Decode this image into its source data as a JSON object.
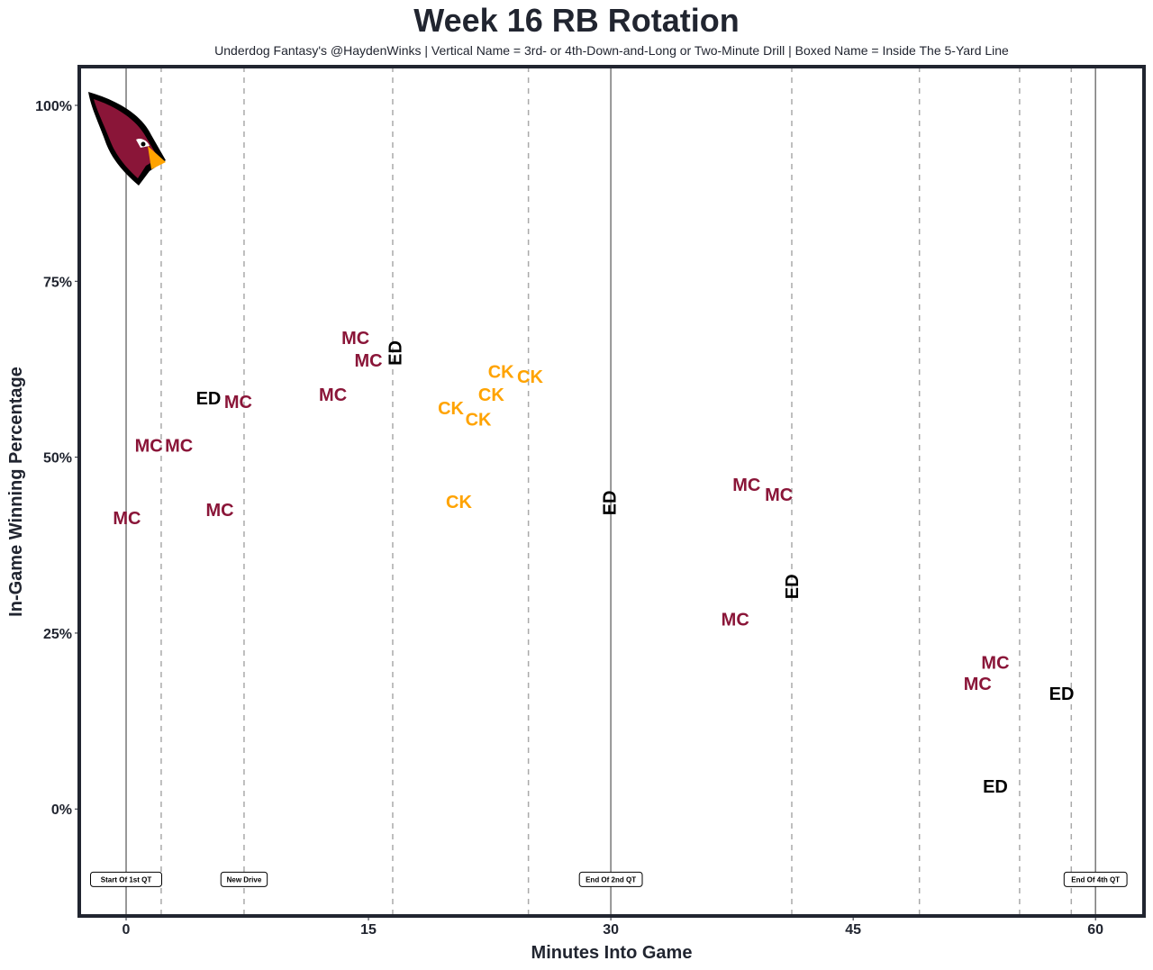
{
  "chart_data": {
    "type": "scatter",
    "title": "Week 16 RB Rotation",
    "subtitle": "Underdog Fantasy's @HaydenWinks | Vertical Name = 3rd- or 4th-Down-and-Long or Two-Minute Drill | Boxed Name = Inside The 5-Yard Line",
    "xlabel": "Minutes Into Game",
    "ylabel": "In-Game Winning Percentage",
    "xlim": [
      -2.9,
      63
    ],
    "ylim": [
      -15.2,
      105.5
    ],
    "xticks": [
      0,
      15,
      30,
      45,
      60
    ],
    "yticks": [
      0,
      25,
      50,
      75,
      100
    ],
    "ytick_labels": [
      "0%",
      "25%",
      "50%",
      "75%",
      "100%"
    ],
    "grid": false,
    "colors": {
      "MC": "#8a1538",
      "CK": "#ffa300",
      "ED": "#000000",
      "frame": "#212530"
    },
    "points": [
      {
        "label": "MC",
        "x": 0.05,
        "y": 41.4,
        "vertical": false
      },
      {
        "label": "MC",
        "x": 1.4,
        "y": 51.7,
        "vertical": false
      },
      {
        "label": "MC",
        "x": 2.1,
        "y": 51.7,
        "vertical": false
      },
      {
        "label": "ED",
        "x": 5.1,
        "y": 58.4,
        "vertical": false
      },
      {
        "label": "MC",
        "x": 6.6,
        "y": 57.9,
        "vertical": false
      },
      {
        "label": "MC",
        "x": 5.8,
        "y": 42.5,
        "vertical": false
      },
      {
        "label": "MC",
        "x": 12.8,
        "y": 58.9,
        "vertical": false
      },
      {
        "label": "MC",
        "x": 14.2,
        "y": 67.0,
        "vertical": false
      },
      {
        "label": "MC",
        "x": 15.0,
        "y": 63.8,
        "vertical": false
      },
      {
        "label": "ED",
        "x": 15.8,
        "y": 64.8,
        "vertical": true
      },
      {
        "label": "CK",
        "x": 20.1,
        "y": 57.0,
        "vertical": false
      },
      {
        "label": "CK",
        "x": 21.3,
        "y": 55.4,
        "vertical": false
      },
      {
        "label": "CK",
        "x": 22.6,
        "y": 58.9,
        "vertical": false
      },
      {
        "label": "CK",
        "x": 23.2,
        "y": 61.8,
        "vertical": false
      },
      {
        "label": "CK",
        "x": 24.0,
        "y": 61.5,
        "vertical": false
      },
      {
        "label": "CK",
        "x": 20.6,
        "y": 43.7,
        "vertical": false
      },
      {
        "label": "ED",
        "x": 29.9,
        "y": 43.5,
        "vertical": true
      },
      {
        "label": "MC",
        "x": 38.4,
        "y": 46.1,
        "vertical": false
      },
      {
        "label": "MC",
        "x": 40.4,
        "y": 44.7,
        "vertical": false
      },
      {
        "label": "ED",
        "x": 41.2,
        "y": 31.6,
        "vertical": true
      },
      {
        "label": "MC",
        "x": 37.7,
        "y": 27.0,
        "vertical": false
      },
      {
        "label": "MC",
        "x": 52.7,
        "y": 17.8,
        "vertical": false
      },
      {
        "label": "MC",
        "x": 53.8,
        "y": 19.3,
        "vertical": false
      },
      {
        "label": "ED",
        "x": 57.9,
        "y": 16.4,
        "vertical": false
      },
      {
        "label": "ED",
        "x": 53.8,
        "y": 3.2,
        "vertical": false
      }
    ],
    "solid_lines": [
      0,
      30,
      60
    ],
    "dashed_lines": [
      2.17,
      7.3,
      16.5,
      24.9,
      41.2,
      49.1,
      55.3,
      58.5
    ],
    "event_labels": [
      {
        "text": "Start Of 1st QT",
        "x": 0,
        "y": -10
      },
      {
        "text": "New Drive",
        "x": 7.3,
        "y": -10
      },
      {
        "text": "End Of 2nd QT",
        "x": 30,
        "y": -10
      },
      {
        "text": "End Of 4th QT",
        "x": 60,
        "y": -10
      }
    ]
  }
}
